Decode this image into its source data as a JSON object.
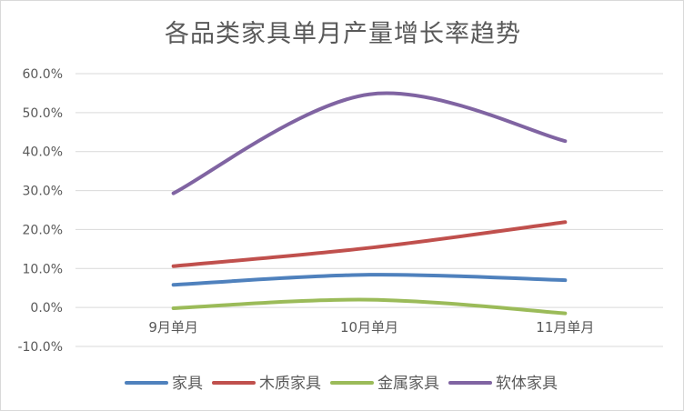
{
  "chart_data": {
    "type": "line",
    "title": "各品类家具单月产量增长率趋势",
    "categories": [
      "9月单月",
      "10月单月",
      "11月单月"
    ],
    "series": [
      {
        "name": "家具",
        "values": [
          5.8,
          8.4,
          7.0
        ],
        "color": "#4F81BD"
      },
      {
        "name": "木质家具",
        "values": [
          10.6,
          15.3,
          21.9
        ],
        "color": "#C0504D"
      },
      {
        "name": "金属家具",
        "values": [
          -0.2,
          2.0,
          -1.5
        ],
        "color": "#9BBB59"
      },
      {
        "name": "软体家具",
        "values": [
          29.3,
          54.7,
          42.7
        ],
        "color": "#8064A2"
      }
    ],
    "ylim": [
      -10,
      60
    ],
    "y_ticks": [
      "-10.0%",
      "0.0%",
      "10.0%",
      "20.0%",
      "30.0%",
      "40.0%",
      "50.0%",
      "60.0%"
    ],
    "y_tick_values": [
      -10,
      0,
      10,
      20,
      30,
      40,
      50,
      60
    ],
    "grid": true,
    "legend_position": "bottom",
    "xlabel": "",
    "ylabel": ""
  }
}
